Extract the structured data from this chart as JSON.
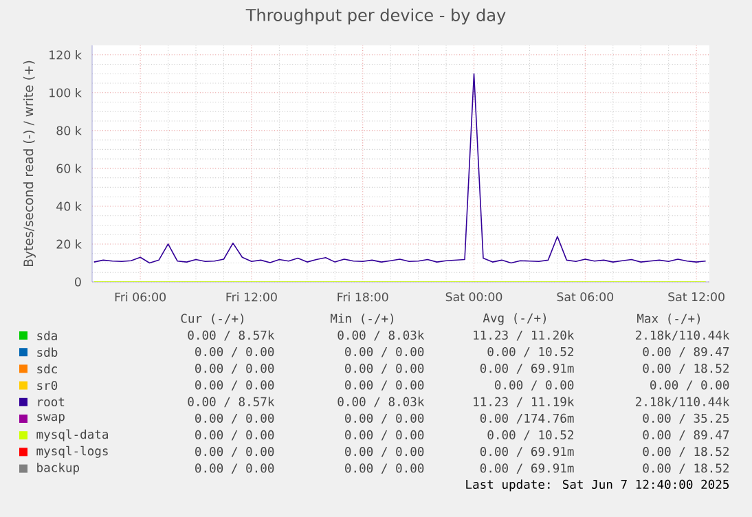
{
  "chart_data": {
    "type": "line",
    "title": "Throughput per device - by day",
    "ylabel": "Bytes/second read (-) / write (+)",
    "x": [
      "2025-06-06T03:30",
      "2025-06-06T04:00",
      "2025-06-06T04:30",
      "2025-06-06T05:00",
      "2025-06-06T05:30",
      "2025-06-06T06:00",
      "2025-06-06T06:30",
      "2025-06-06T07:00",
      "2025-06-06T07:30",
      "2025-06-06T08:00",
      "2025-06-06T08:30",
      "2025-06-06T09:00",
      "2025-06-06T09:30",
      "2025-06-06T10:00",
      "2025-06-06T10:30",
      "2025-06-06T11:00",
      "2025-06-06T11:30",
      "2025-06-06T12:00",
      "2025-06-06T12:30",
      "2025-06-06T13:00",
      "2025-06-06T13:30",
      "2025-06-06T14:00",
      "2025-06-06T14:30",
      "2025-06-06T15:00",
      "2025-06-06T15:30",
      "2025-06-06T16:00",
      "2025-06-06T16:30",
      "2025-06-06T17:00",
      "2025-06-06T17:30",
      "2025-06-06T18:00",
      "2025-06-06T18:30",
      "2025-06-06T19:00",
      "2025-06-06T19:30",
      "2025-06-06T20:00",
      "2025-06-06T20:30",
      "2025-06-06T21:00",
      "2025-06-06T21:30",
      "2025-06-06T22:00",
      "2025-06-06T22:30",
      "2025-06-06T23:00",
      "2025-06-06T23:30",
      "2025-06-07T00:00",
      "2025-06-07T00:30",
      "2025-06-07T01:00",
      "2025-06-07T01:30",
      "2025-06-07T02:00",
      "2025-06-07T02:30",
      "2025-06-07T03:00",
      "2025-06-07T03:30",
      "2025-06-07T04:00",
      "2025-06-07T04:30",
      "2025-06-07T05:00",
      "2025-06-07T05:30",
      "2025-06-07T06:00",
      "2025-06-07T06:30",
      "2025-06-07T07:00",
      "2025-06-07T07:30",
      "2025-06-07T08:00",
      "2025-06-07T08:30",
      "2025-06-07T09:00",
      "2025-06-07T09:30",
      "2025-06-07T10:00",
      "2025-06-07T10:30",
      "2025-06-07T11:00",
      "2025-06-07T11:30",
      "2025-06-07T12:00",
      "2025-06-07T12:30"
    ],
    "series": [
      {
        "name": "sda",
        "color": "#00cc00",
        "values": [
          null,
          null,
          null,
          null,
          null,
          null,
          null,
          null,
          null,
          null,
          null,
          null,
          null,
          null,
          null,
          null,
          null,
          null,
          null,
          null,
          null,
          null,
          null,
          null,
          null,
          null,
          null,
          null,
          null,
          null,
          null,
          null,
          null,
          null,
          null,
          null,
          null,
          null,
          null,
          null,
          null,
          null,
          null,
          null,
          null,
          null,
          null,
          null,
          null,
          null,
          null,
          null,
          null,
          null,
          null,
          null,
          null,
          null,
          null,
          null,
          null,
          null,
          null,
          null,
          null,
          null,
          null
        ]
      },
      {
        "name": "sdb",
        "color": "#0066b3",
        "values": [
          null,
          null,
          null,
          null,
          null,
          null,
          null,
          null,
          null,
          null,
          null,
          null,
          null,
          null,
          null,
          null,
          null,
          null,
          null,
          null,
          null,
          null,
          null,
          null,
          null,
          null,
          null,
          null,
          null,
          null,
          null,
          null,
          null,
          null,
          null,
          null,
          null,
          null,
          null,
          null,
          null,
          null,
          null,
          null,
          null,
          null,
          null,
          null,
          null,
          null,
          null,
          null,
          null,
          null,
          null,
          null,
          null,
          null,
          null,
          null,
          null,
          null,
          null,
          null,
          null,
          null,
          null
        ]
      },
      {
        "name": "sdc",
        "color": "#ff8000",
        "values": [
          null,
          null,
          null,
          null,
          null,
          null,
          null,
          null,
          null,
          null,
          null,
          null,
          null,
          null,
          null,
          null,
          null,
          null,
          null,
          null,
          null,
          null,
          null,
          null,
          null,
          null,
          null,
          null,
          null,
          null,
          null,
          null,
          null,
          null,
          null,
          null,
          null,
          null,
          null,
          null,
          null,
          null,
          null,
          null,
          null,
          null,
          null,
          null,
          null,
          null,
          null,
          null,
          null,
          null,
          null,
          null,
          null,
          null,
          null,
          null,
          null,
          null,
          null,
          null,
          null,
          null,
          null
        ]
      },
      {
        "name": "sr0",
        "color": "#ffcc00",
        "values": [
          null,
          null,
          null,
          null,
          null,
          null,
          null,
          null,
          null,
          null,
          null,
          null,
          null,
          null,
          null,
          null,
          null,
          null,
          null,
          null,
          null,
          null,
          null,
          null,
          null,
          null,
          null,
          null,
          null,
          null,
          null,
          null,
          null,
          null,
          null,
          null,
          null,
          null,
          null,
          null,
          null,
          null,
          null,
          null,
          null,
          null,
          null,
          null,
          null,
          null,
          null,
          null,
          null,
          null,
          null,
          null,
          null,
          null,
          null,
          null,
          null,
          null,
          null,
          null,
          null,
          null,
          null
        ]
      },
      {
        "name": "root",
        "color": "#330099",
        "values": [
          10500,
          11500,
          11000,
          10800,
          11200,
          13000,
          10000,
          11500,
          20000,
          11000,
          10500,
          11800,
          10800,
          11000,
          12000,
          20500,
          13000,
          10800,
          11500,
          10200,
          11800,
          11000,
          12500,
          10500,
          11800,
          12800,
          10500,
          12000,
          11000,
          10800,
          11500,
          10500,
          11200,
          12000,
          10800,
          11000,
          11800,
          10500,
          11200,
          11500,
          11800,
          110000,
          12500,
          10500,
          11500,
          10000,
          11200,
          11000,
          10800,
          11500,
          24000,
          11500,
          10800,
          12000,
          11000,
          11500,
          10500,
          11200,
          11800,
          10500,
          11000,
          11500,
          10800,
          12000,
          11000,
          10500,
          11000
        ]
      },
      {
        "name": "swap",
        "color": "#990099",
        "values": [
          null,
          null,
          null,
          null,
          null,
          null,
          null,
          null,
          null,
          null,
          null,
          null,
          null,
          null,
          null,
          null,
          null,
          null,
          null,
          null,
          null,
          null,
          null,
          null,
          null,
          null,
          null,
          null,
          null,
          null,
          null,
          null,
          null,
          null,
          null,
          null,
          null,
          null,
          null,
          null,
          null,
          null,
          null,
          null,
          null,
          null,
          null,
          null,
          null,
          null,
          null,
          null,
          null,
          null,
          null,
          null,
          null,
          null,
          null,
          null,
          null,
          null,
          null,
          null,
          null,
          null,
          null
        ]
      },
      {
        "name": "mysql-data",
        "color": "#ccff00",
        "values": [
          0,
          0,
          0,
          0,
          0,
          0,
          0,
          0,
          0,
          0,
          0,
          0,
          0,
          0,
          0,
          0,
          0,
          0,
          0,
          0,
          0,
          0,
          0,
          0,
          0,
          0,
          0,
          0,
          0,
          0,
          0,
          0,
          0,
          0,
          0,
          0,
          0,
          0,
          0,
          0,
          0,
          0,
          0,
          0,
          0,
          0,
          0,
          0,
          0,
          0,
          0,
          0,
          0,
          0,
          0,
          0,
          0,
          0,
          0,
          0,
          0,
          0,
          0,
          0,
          0,
          0,
          0
        ]
      },
      {
        "name": "mysql-logs",
        "color": "#ff0000",
        "values": [
          null,
          null,
          null,
          null,
          null,
          null,
          null,
          null,
          null,
          null,
          null,
          null,
          null,
          null,
          null,
          null,
          null,
          null,
          null,
          null,
          null,
          null,
          null,
          null,
          null,
          null,
          null,
          null,
          null,
          null,
          null,
          null,
          null,
          null,
          null,
          null,
          null,
          null,
          null,
          null,
          null,
          null,
          null,
          null,
          null,
          null,
          null,
          null,
          null,
          null,
          null,
          null,
          null,
          null,
          null,
          null,
          null,
          null,
          null,
          null,
          null,
          null,
          null,
          null,
          null,
          null,
          null
        ]
      },
      {
        "name": "backup",
        "color": "#808080",
        "values": [
          null,
          null,
          null,
          null,
          null,
          null,
          null,
          null,
          null,
          null,
          null,
          null,
          null,
          null,
          null,
          null,
          null,
          null,
          null,
          null,
          null,
          null,
          null,
          null,
          null,
          null,
          null,
          null,
          null,
          null,
          null,
          null,
          null,
          null,
          null,
          null,
          null,
          null,
          null,
          null,
          null,
          null,
          null,
          null,
          null,
          null,
          null,
          null,
          null,
          null,
          null,
          null,
          null,
          null,
          null,
          null,
          null,
          null,
          null,
          null,
          null,
          null,
          null,
          null,
          null,
          null,
          null
        ]
      }
    ],
    "xlim": [
      "2025-06-06T03:24",
      "2025-06-07T12:42"
    ],
    "ylim": [
      0,
      125000
    ],
    "xticks": [
      {
        "value": "2025-06-06T06:00",
        "label": "Fri 06:00"
      },
      {
        "value": "2025-06-06T12:00",
        "label": "Fri 12:00"
      },
      {
        "value": "2025-06-06T18:00",
        "label": "Fri 18:00"
      },
      {
        "value": "2025-06-07T00:00",
        "label": "Sat 00:00"
      },
      {
        "value": "2025-06-07T06:00",
        "label": "Sat 06:00"
      },
      {
        "value": "2025-06-07T12:00",
        "label": "Sat 12:00"
      }
    ],
    "yticks": [
      0,
      {
        "value": 20000,
        "label": "20 k"
      },
      {
        "value": 40000,
        "label": "40 k"
      },
      {
        "value": 60000,
        "label": "60 k"
      },
      {
        "value": 80000,
        "label": "80 k"
      },
      {
        "value": 100000,
        "label": "100 k"
      },
      {
        "value": 120000,
        "label": "120 k"
      }
    ],
    "grid": true,
    "legend": "bottom",
    "annotations": [
      "Cur (-/+)",
      "Min (-/+)",
      "Avg (-/+)",
      "Max (-/+)",
      "0.00 / 8.57k",
      "0.00 / 8.03k",
      "11.23 / 11.20k",
      "2.18k/110.44k",
      "0.00 / 0.00",
      "0.00 / 0.00",
      "0.00 / 10.52",
      "0.00 / 89.47",
      "0.00 / 0.00",
      "0.00 / 0.00",
      "0.00 / 69.91m",
      "0.00 / 18.52",
      "0.00 / 0.00",
      "0.00 / 0.00",
      "0.00 / 0.00",
      "0.00 / 0.00",
      "0.00 / 8.57k",
      "0.00 / 8.03k",
      "11.23 / 11.19k",
      "2.18k/110.44k",
      "0.00 / 0.00",
      "0.00 / 0.00",
      "0.00 /174.76m",
      "0.00 / 35.25",
      "0.00 / 0.00",
      "0.00 / 0.00",
      "0.00 / 10.52",
      "0.00 / 89.47",
      "0.00 / 0.00",
      "0.00 / 0.00",
      "0.00 / 69.91m",
      "0.00 / 18.52",
      "0.00 / 0.00",
      "0.00 / 0.00",
      "0.00 / 69.91m",
      "0.00 / 18.52",
      "Last update: Sat Jun 7 12:40:00 2025"
    ]
  }
}
